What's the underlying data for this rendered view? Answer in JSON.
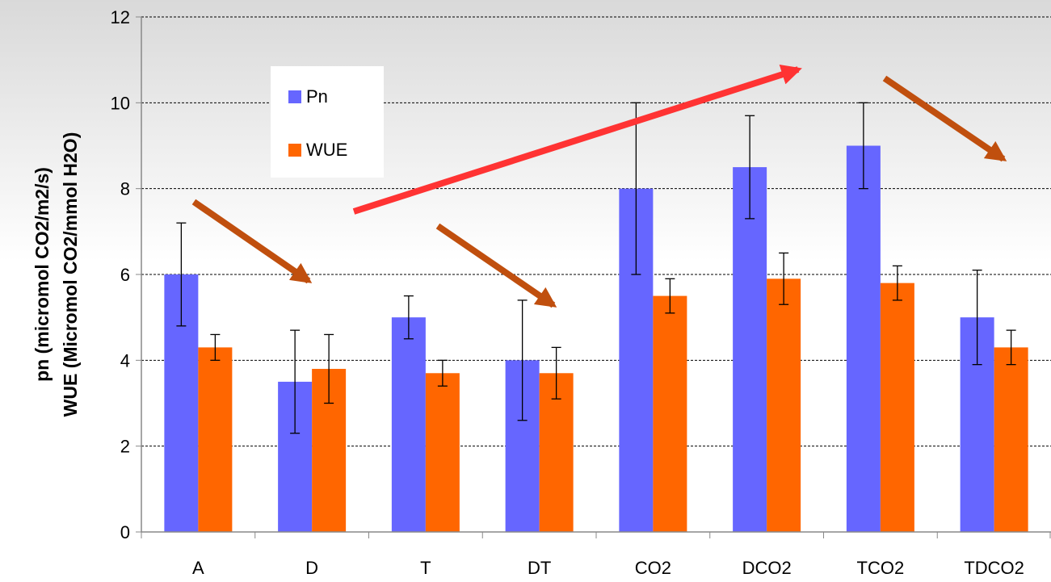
{
  "chart_data": {
    "type": "bar",
    "categories": [
      "A",
      "D",
      "T",
      "DT",
      "CO2",
      "DCO2",
      "TCO2",
      "TDCO2"
    ],
    "series": [
      {
        "name": "Pn",
        "color": "#6666ff",
        "values": [
          6.0,
          3.5,
          5.0,
          4.0,
          8.0,
          8.5,
          9.0,
          5.0
        ],
        "error_low": [
          4.8,
          2.3,
          4.5,
          2.6,
          6.0,
          7.3,
          8.0,
          3.9
        ],
        "error_high": [
          7.2,
          4.7,
          5.5,
          5.4,
          10.0,
          9.7,
          10.0,
          6.1
        ]
      },
      {
        "name": "WUE",
        "color": "#ff6600",
        "values": [
          4.3,
          3.8,
          3.7,
          3.7,
          5.5,
          5.9,
          5.8,
          4.3
        ],
        "error_low": [
          4.0,
          3.0,
          3.4,
          3.1,
          5.1,
          5.3,
          5.4,
          3.9
        ],
        "error_high": [
          4.6,
          4.6,
          4.0,
          4.3,
          5.9,
          6.5,
          6.2,
          4.7
        ]
      }
    ],
    "ylabel_line1": "pn (micromol CO2/m2/s)",
    "ylabel_line2": "WUE (Micromol CO2/mmol H2O)",
    "ylim": [
      0,
      12
    ],
    "yticks": [
      "0",
      "2",
      "4",
      "6",
      "8",
      "10",
      "12"
    ],
    "grid": true,
    "legend_position": "top-left",
    "annotations": [
      {
        "type": "arrow",
        "color": "#c04f0e",
        "meaning": "decrease from A to D"
      },
      {
        "type": "arrow",
        "color": "#c04f0e",
        "meaning": "decrease from T to DT"
      },
      {
        "type": "arrow",
        "color": "#ff3333",
        "meaning": "increase toward CO2 treatments"
      },
      {
        "type": "arrow",
        "color": "#c04f0e",
        "meaning": "decrease from TCO2 to TDCO2"
      }
    ]
  }
}
